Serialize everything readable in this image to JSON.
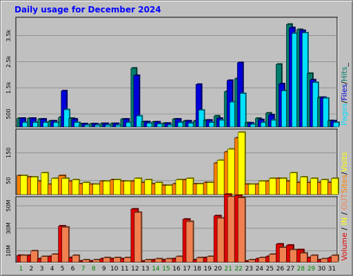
{
  "chart_data": {
    "type": "bar",
    "title": "Daily usage for December 2024",
    "days": [
      "1",
      "2",
      "3",
      "4",
      "5",
      "6",
      "7",
      "8",
      "9",
      "10",
      "11",
      "12",
      "13",
      "14",
      "15",
      "16",
      "17",
      "18",
      "19",
      "20",
      "21",
      "22",
      "23",
      "24",
      "25",
      "26",
      "27",
      "28",
      "29",
      "30",
      "31"
    ],
    "weekend_days": [
      "1",
      "7",
      "8",
      "14",
      "15",
      "21",
      "22",
      "28",
      "29"
    ],
    "panels": [
      {
        "id": "hits",
        "ymax": 4200,
        "ticks": [
          {
            "value": 500,
            "label": "500"
          },
          {
            "value": 1500,
            "label": "1.5k"
          },
          {
            "value": 2500,
            "label": "2.5k"
          },
          {
            "value": 3500,
            "label": "3.5k"
          }
        ],
        "series": [
          {
            "name": "Hits",
            "color": "#007c6c",
            "values": [
              330,
              330,
              300,
              230,
              370,
              330,
              120,
              120,
              130,
              130,
              300,
              2250,
              200,
              190,
              140,
              300,
              230,
              230,
              260,
              420,
              1350,
              1850,
              160,
              330,
              530,
              2400,
              3930,
              3730,
              2050,
              1130,
              240
            ]
          },
          {
            "name": "Files",
            "color": "#0000d8",
            "values": [
              330,
              330,
              300,
              230,
              1380,
              300,
              120,
              120,
              130,
              130,
              300,
              1970,
              200,
              190,
              140,
              300,
              230,
              1630,
              260,
              330,
              1780,
              2460,
              150,
              280,
              460,
              1650,
              3800,
              3690,
              1800,
              1130,
              230
            ]
          },
          {
            "name": "Pages",
            "color": "#00e0ff",
            "values": [
              170,
              170,
              170,
              170,
              660,
              170,
              70,
              70,
              70,
              70,
              170,
              420,
              140,
              110,
              70,
              170,
              140,
              640,
              170,
              260,
              950,
              1280,
              100,
              170,
              260,
              1380,
              3580,
              3600,
              1700,
              1100,
              170
            ]
          }
        ],
        "legend": [
          {
            "text": "Pages",
            "color": "#00e0ff"
          },
          {
            "text": "/",
            "color": "#000000"
          },
          {
            "text": "Files",
            "color": "#0000d8"
          },
          {
            "text": "/",
            "color": "#000000"
          },
          {
            "text": "Hits",
            "color": "#007c6c"
          },
          {
            "text": "_",
            "color": "#000000"
          }
        ]
      },
      {
        "id": "visits",
        "ymax": 235,
        "ticks": [
          {
            "value": 50,
            "label": "50"
          },
          {
            "value": 150,
            "label": "150"
          }
        ],
        "series": [
          {
            "name": "Sites",
            "color": "#ff8000",
            "values": [
              68,
              63,
              48,
              37,
              68,
              48,
              38,
              37,
              48,
              53,
              48,
              48,
              43,
              38,
              33,
              38,
              53,
              38,
              43,
              113,
              153,
              203,
              37,
              37,
              48,
              58,
              48,
              43,
              43,
              43,
              43
            ]
          },
          {
            "name": "Visits",
            "color": "#ffff00",
            "values": [
              68,
              63,
              78,
              58,
              58,
              53,
              43,
              37,
              48,
              53,
              48,
              58,
              53,
              43,
              33,
              53,
              58,
              38,
              43,
              123,
              163,
              223,
              37,
              48,
              58,
              58,
              78,
              63,
              58,
              53,
              58
            ]
          }
        ],
        "legend": [
          {
            "text": "Sites",
            "color": "#ff8000"
          },
          {
            "text": "/",
            "color": "#000000"
          },
          {
            "text": "Visits",
            "color": "#ffff00"
          }
        ]
      },
      {
        "id": "volume",
        "ymax": 58,
        "ticks": [
          {
            "value": 10,
            "label": "10M"
          },
          {
            "value": 30,
            "label": "30M"
          },
          {
            "value": 50,
            "label": "50M"
          }
        ],
        "series": [
          {
            "name": "IN",
            "color": "#e00000",
            "values": [
              6,
              6,
              3,
              5,
              32,
              4,
              1,
              1,
              3,
              3,
              3,
              47,
              1,
              2,
              2,
              3,
              38,
              2,
              4,
              41,
              60,
              59,
              1,
              3,
              5,
              16,
              15,
              11,
              4,
              2,
              4
            ]
          },
          {
            "name": "OUT",
            "color": "#f08050",
            "values": [
              6,
              10,
              5,
              7,
              31,
              6,
              2,
              2,
              4,
              4,
              4,
              44,
              2,
              3,
              3,
              5,
              36,
              4,
              5,
              39,
              58,
              57,
              2,
              4,
              7,
              13,
              11,
              8,
              6,
              3,
              6
            ]
          }
        ],
        "legend": [
          {
            "text": "Volume",
            "color": "#e00000"
          },
          {
            "text": " / ",
            "color": "#000000"
          },
          {
            "text": "IN",
            "color": "#ffff00"
          },
          {
            "text": " / ",
            "color": "#000000"
          },
          {
            "text": "OUT",
            "color": "#f08050"
          }
        ]
      }
    ],
    "grid": true,
    "legend_position": "right-vertical"
  }
}
